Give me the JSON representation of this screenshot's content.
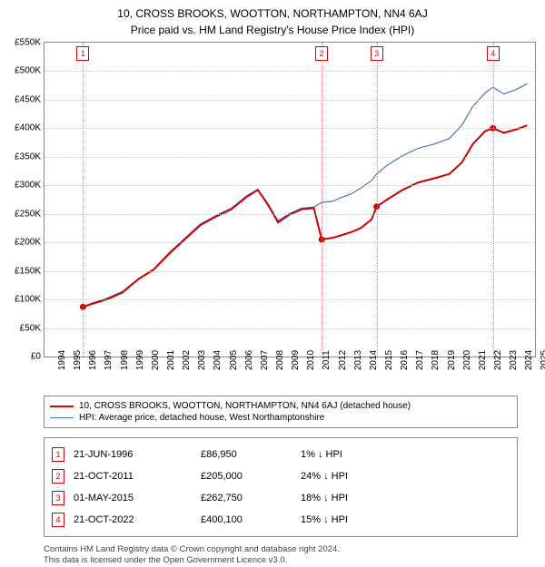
{
  "title_line1": "10, CROSS BROOKS, WOOTTON, NORTHAMPTON, NN4 6AJ",
  "title_line2": "Price paid vs. HM Land Registry's House Price Index (HPI)",
  "chart": {
    "type": "line",
    "x_min": 1994,
    "x_max": 2025.5,
    "y_min": 0,
    "y_max": 550000,
    "y_ticks": [
      0,
      50000,
      100000,
      150000,
      200000,
      250000,
      300000,
      350000,
      400000,
      450000,
      500000,
      550000
    ],
    "y_tick_labels": [
      "£0",
      "£50K",
      "£100K",
      "£150K",
      "£200K",
      "£250K",
      "£300K",
      "£350K",
      "£400K",
      "£450K",
      "£500K",
      "£550K"
    ],
    "x_ticks": [
      1994,
      1995,
      1996,
      1997,
      1998,
      1999,
      2000,
      2001,
      2002,
      2003,
      2004,
      2005,
      2006,
      2007,
      2008,
      2009,
      2010,
      2011,
      2012,
      2013,
      2014,
      2015,
      2016,
      2017,
      2018,
      2019,
      2020,
      2021,
      2022,
      2023,
      2024,
      2025
    ],
    "grid_color": "#cccccc",
    "background_color": "#ffffff",
    "label_fontsize": 10,
    "series": {
      "price_paid": {
        "label": "10, CROSS BROOKS, WOOTTON, NORTHAMPTON, NN4 6AJ (detached house)",
        "color": "#d00000",
        "line_width": 2,
        "points": [
          [
            1996.47,
            86950
          ],
          [
            1997,
            92000
          ],
          [
            1998,
            100000
          ],
          [
            1999,
            112000
          ],
          [
            2000,
            135000
          ],
          [
            2001,
            152000
          ],
          [
            2002,
            180000
          ],
          [
            2003,
            205000
          ],
          [
            2004,
            230000
          ],
          [
            2005,
            245000
          ],
          [
            2006,
            258000
          ],
          [
            2007,
            280000
          ],
          [
            2007.7,
            292000
          ],
          [
            2008.3,
            268000
          ],
          [
            2009,
            235000
          ],
          [
            2009.7,
            248000
          ],
          [
            2010.5,
            258000
          ],
          [
            2011.3,
            260000
          ],
          [
            2011.8,
            205000
          ],
          [
            2012.5,
            208000
          ],
          [
            2013,
            212000
          ],
          [
            2013.7,
            218000
          ],
          [
            2014.3,
            225000
          ],
          [
            2015,
            240000
          ],
          [
            2015.33,
            262750
          ],
          [
            2016,
            275000
          ],
          [
            2017,
            292000
          ],
          [
            2018,
            305000
          ],
          [
            2019,
            312000
          ],
          [
            2020,
            320000
          ],
          [
            2020.8,
            340000
          ],
          [
            2021.5,
            372000
          ],
          [
            2022.3,
            395000
          ],
          [
            2022.8,
            400100
          ],
          [
            2023.5,
            392000
          ],
          [
            2024.3,
            398000
          ],
          [
            2025,
            405000
          ]
        ]
      },
      "hpi": {
        "label": "HPI: Average price, detached house, West Northamptonshire",
        "color": "#4a78b5",
        "line_width": 1.2,
        "points": [
          [
            1996.47,
            86950
          ],
          [
            1997,
            93000
          ],
          [
            1998,
            102000
          ],
          [
            1999,
            114000
          ],
          [
            2000,
            136000
          ],
          [
            2001,
            153000
          ],
          [
            2002,
            182000
          ],
          [
            2003,
            207000
          ],
          [
            2004,
            232000
          ],
          [
            2005,
            247000
          ],
          [
            2006,
            260000
          ],
          [
            2007,
            282000
          ],
          [
            2007.7,
            293000
          ],
          [
            2008.3,
            270000
          ],
          [
            2009,
            238000
          ],
          [
            2009.7,
            250000
          ],
          [
            2010.5,
            260000
          ],
          [
            2011.3,
            262000
          ],
          [
            2011.8,
            270000
          ],
          [
            2012.5,
            272000
          ],
          [
            2013,
            278000
          ],
          [
            2013.7,
            285000
          ],
          [
            2014.3,
            295000
          ],
          [
            2015,
            308000
          ],
          [
            2015.33,
            320000
          ],
          [
            2016,
            335000
          ],
          [
            2017,
            352000
          ],
          [
            2018,
            365000
          ],
          [
            2019,
            372000
          ],
          [
            2020,
            382000
          ],
          [
            2020.8,
            405000
          ],
          [
            2021.5,
            438000
          ],
          [
            2022.3,
            462000
          ],
          [
            2022.8,
            472000
          ],
          [
            2023.5,
            460000
          ],
          [
            2024.3,
            468000
          ],
          [
            2025,
            478000
          ]
        ]
      }
    },
    "sale_markers": [
      {
        "n": "1",
        "x": 1996.47,
        "y": 86950
      },
      {
        "n": "2",
        "x": 2011.8,
        "y": 205000
      },
      {
        "n": "3",
        "x": 2015.33,
        "y": 262750
      },
      {
        "n": "4",
        "x": 2022.8,
        "y": 400100
      }
    ]
  },
  "legend": [
    {
      "color": "#d00000",
      "width": 2,
      "text": "10, CROSS BROOKS, WOOTTON, NORTHAMPTON, NN4 6AJ (detached house)"
    },
    {
      "color": "#4a78b5",
      "width": 1.2,
      "text": "HPI: Average price, detached house, West Northamptonshire"
    }
  ],
  "table_rows": [
    {
      "n": "1",
      "date": "21-JUN-1996",
      "price": "£86,950",
      "diff": "1% ↓ HPI"
    },
    {
      "n": "2",
      "date": "21-OCT-2011",
      "price": "£205,000",
      "diff": "24% ↓ HPI"
    },
    {
      "n": "3",
      "date": "01-MAY-2015",
      "price": "£262,750",
      "diff": "18% ↓ HPI"
    },
    {
      "n": "4",
      "date": "21-OCT-2022",
      "price": "£400,100",
      "diff": "15% ↓ HPI"
    }
  ],
  "footer_line1": "Contains HM Land Registry data © Crown copyright and database right 2024.",
  "footer_line2": "This data is licensed under the Open Government Licence v3.0."
}
